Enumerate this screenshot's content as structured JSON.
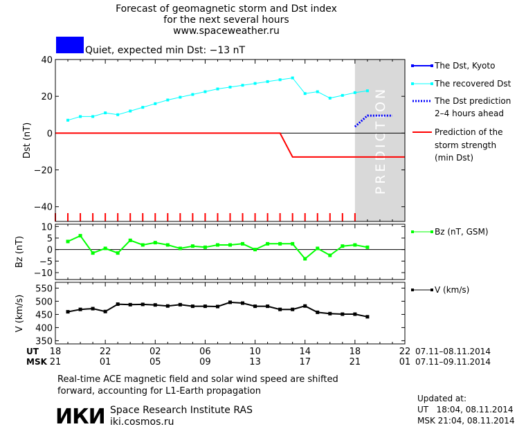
{
  "header": {
    "title_lines": [
      "Forecast of geomagnetic storm and Dst index",
      "for the next several hours",
      "www.spaceweather.ru"
    ],
    "status_text": "Quiet, expected min Dst: −13 nT",
    "status_color": "#0000ff"
  },
  "colors": {
    "dst_kyoto": "#0000ff",
    "recovered": "#00ffff",
    "prediction": "#0000ff",
    "storm_strength": "#ff0000",
    "bz": "#00ff00",
    "v": "#000000",
    "prediction_band": "#d9d9d9"
  },
  "prediction_label": "PREDICTION",
  "legend": {
    "dst_kyoto": "The Dst, Kyoto",
    "recovered": "The recovered Dst",
    "prediction_lines": [
      "The Dst prediction",
      "2–4 hours ahead"
    ],
    "storm_lines": [
      "Prediction of the",
      "storm strength",
      "(min Dst)"
    ],
    "bz": "Bz (nT, GSM)",
    "v": "V (km/s)"
  },
  "time_axis": {
    "ut_label": "UT",
    "msk_label": "MSK",
    "ut_ticks": [
      "18",
      "22",
      "02",
      "06",
      "10",
      "14",
      "18",
      "22"
    ],
    "msk_ticks": [
      "21",
      "01",
      "05",
      "09",
      "13",
      "17",
      "21",
      "01"
    ],
    "ut_range": "07.11–08.11.2014",
    "msk_range": "07.11–09.11.2014"
  },
  "footer": {
    "note_lines": [
      "Real-time ACE magnetic field and solar wind speed are shifted",
      "forward, accounting for L1-Earth propagation"
    ],
    "logo_text": "ИКИ",
    "institute": "Space Research Institute RAS",
    "website": "iki.cosmos.ru",
    "updated_label": "Updated at:",
    "updated_ut": "UT   18:04, 08.11.2014",
    "updated_msk": "MSK 21:04, 08.11.2014"
  },
  "chart_data": [
    {
      "type": "line",
      "ylabel": "Dst (nT)",
      "xlim": [
        0,
        28
      ],
      "ylim": [
        -48,
        40
      ],
      "yticks": [
        40,
        20,
        0,
        -20,
        -40
      ],
      "prediction_start": 24,
      "series": [
        {
          "name": "The recovered Dst",
          "x": [
            1,
            2,
            3,
            4,
            5,
            6,
            7,
            8,
            9,
            10,
            11,
            12,
            13,
            14,
            15,
            16,
            17,
            18,
            19,
            20,
            21,
            22,
            23,
            24,
            25
          ],
          "y": [
            7,
            9,
            9,
            11,
            10,
            12,
            14,
            16,
            18,
            19.5,
            21,
            22.5,
            24,
            25,
            26,
            27,
            28,
            29,
            30,
            21.5,
            22.5,
            19,
            20.5,
            22,
            23
          ]
        },
        {
          "name": "The Dst prediction 2–4 hours ahead",
          "x": [
            24,
            25,
            26,
            27
          ],
          "y": [
            3.5,
            9.5,
            9.5,
            9.5
          ]
        },
        {
          "name": "Prediction of the storm strength (min Dst)",
          "x": [
            0,
            18,
            19,
            28
          ],
          "y": [
            0,
            0,
            -13,
            -13
          ]
        }
      ]
    },
    {
      "type": "line",
      "ylabel": "Bz (nT)",
      "xlim": [
        0,
        28
      ],
      "ylim": [
        -13,
        11
      ],
      "yticks": [
        10,
        5,
        0,
        -5,
        -10
      ],
      "series": [
        {
          "name": "Bz (nT, GSM)",
          "x": [
            1,
            2,
            3,
            4,
            5,
            6,
            7,
            8,
            9,
            10,
            11,
            12,
            13,
            14,
            15,
            16,
            17,
            18,
            19,
            20,
            21,
            22,
            23,
            24,
            25
          ],
          "y": [
            3.5,
            6,
            -1.5,
            0.5,
            -1.5,
            4,
            2,
            3,
            2,
            0.5,
            1.5,
            1,
            2,
            2,
            2.5,
            0,
            2.5,
            2.5,
            2.5,
            -4,
            0.5,
            -2.5,
            1.5,
            2,
            1
          ]
        }
      ]
    },
    {
      "type": "line",
      "ylabel": "V (km/s)",
      "xlim": [
        0,
        28
      ],
      "ylim": [
        338,
        572
      ],
      "yticks": [
        550,
        500,
        450,
        400,
        350
      ],
      "series": [
        {
          "name": "V (km/s)",
          "x": [
            1,
            2,
            3,
            4,
            5,
            6,
            7,
            8,
            9,
            10,
            11,
            12,
            13,
            14,
            15,
            16,
            17,
            18,
            19,
            20,
            21,
            22,
            23,
            24,
            25
          ],
          "y": [
            460,
            469,
            472,
            461,
            489,
            487,
            488,
            486,
            482,
            487,
            481,
            481,
            480,
            496,
            493,
            481,
            481,
            469,
            469,
            482,
            458,
            453,
            451,
            451,
            441
          ]
        }
      ]
    }
  ]
}
